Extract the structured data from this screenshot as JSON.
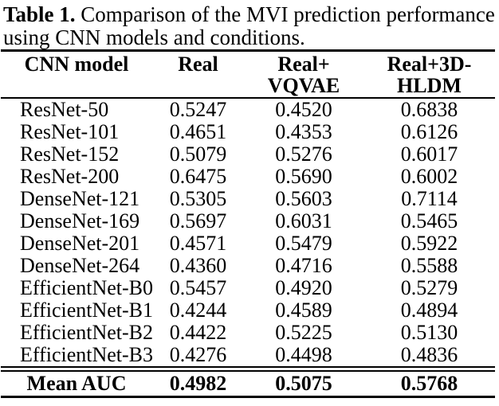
{
  "caption": {
    "label": "Table 1.",
    "line1_rest": "Comparison of the MVI prediction performance",
    "line2": "using CNN models and conditions."
  },
  "colors": {
    "text": "#000000",
    "background": "#ffffff",
    "rules": "#000000"
  },
  "table": {
    "header": [
      {
        "l1": "CNN model",
        "l2": ""
      },
      {
        "l1": "Real",
        "l2": ""
      },
      {
        "l1": "Real+",
        "l2": "VQVAE"
      },
      {
        "l1": "Real+3D-",
        "l2": "HLDM"
      }
    ],
    "rows": [
      [
        "ResNet-50",
        "0.5247",
        "0.4520",
        "0.6838"
      ],
      [
        "ResNet-101",
        "0.4651",
        "0.4353",
        "0.6126"
      ],
      [
        "ResNet-152",
        "0.5079",
        "0.5276",
        "0.6017"
      ],
      [
        "ResNet-200",
        "0.6475",
        "0.5690",
        "0.6002"
      ],
      [
        "DenseNet-121",
        "0.5305",
        "0.5603",
        "0.7114"
      ],
      [
        "DenseNet-169",
        "0.5697",
        "0.6031",
        "0.5465"
      ],
      [
        "DenseNet-201",
        "0.4571",
        "0.5479",
        "0.5922"
      ],
      [
        "DenseNet-264",
        "0.4360",
        "0.4716",
        "0.5588"
      ],
      [
        "EfficientNet-B0",
        "0.5457",
        "0.4920",
        "0.5279"
      ],
      [
        "EfficientNet-B1",
        "0.4244",
        "0.4589",
        "0.4894"
      ],
      [
        "EfficientNet-B2",
        "0.4422",
        "0.5225",
        "0.5130"
      ],
      [
        "EfficientNet-B3",
        "0.4276",
        "0.4498",
        "0.4836"
      ]
    ],
    "footer": [
      "Mean AUC",
      "0.4982",
      "0.5075",
      "0.5768"
    ]
  }
}
